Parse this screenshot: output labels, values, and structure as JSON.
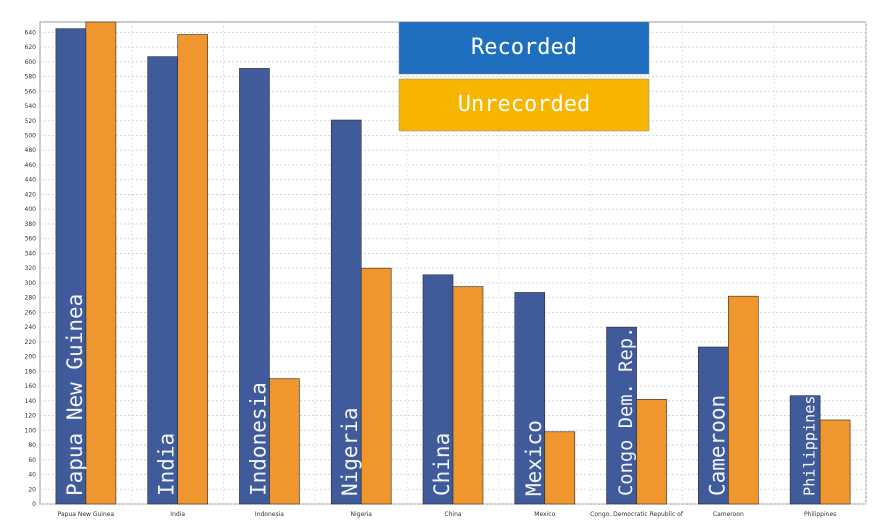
{
  "chart_data": {
    "type": "bar",
    "categories": [
      "Papua New Guinea",
      "India",
      "Indonesia",
      "Nigeria",
      "China",
      "Mexico",
      "Congo, Democratic Republic of",
      "Cameroon",
      "Philippines"
    ],
    "bar_labels": [
      "Papua New Guinea",
      "India",
      "Indonesia",
      "Nigeria",
      "China",
      "Mexico",
      "Congo Dem. Rep.",
      "Cameroon",
      "Philippines"
    ],
    "series": [
      {
        "name": "Recorded",
        "color": "#3f5b9c",
        "values": [
          645,
          607,
          591,
          521,
          311,
          287,
          240,
          213,
          147
        ]
      },
      {
        "name": "Unrecorded",
        "color": "#f0962e",
        "values": [
          654,
          637,
          170,
          320,
          295,
          98,
          142,
          282,
          114
        ]
      }
    ],
    "ylim": [
      0,
      650
    ],
    "yticks": [
      0,
      20,
      40,
      60,
      80,
      100,
      120,
      140,
      160,
      180,
      200,
      220,
      240,
      260,
      280,
      300,
      320,
      340,
      360,
      380,
      400,
      420,
      440,
      460,
      480,
      500,
      520,
      540,
      560,
      580,
      600,
      620,
      640
    ],
    "grid": true,
    "legend_placement": "top-center",
    "legend_colors": {
      "Recorded": "#1f6fc0",
      "Unrecorded": "#f7b500"
    }
  }
}
